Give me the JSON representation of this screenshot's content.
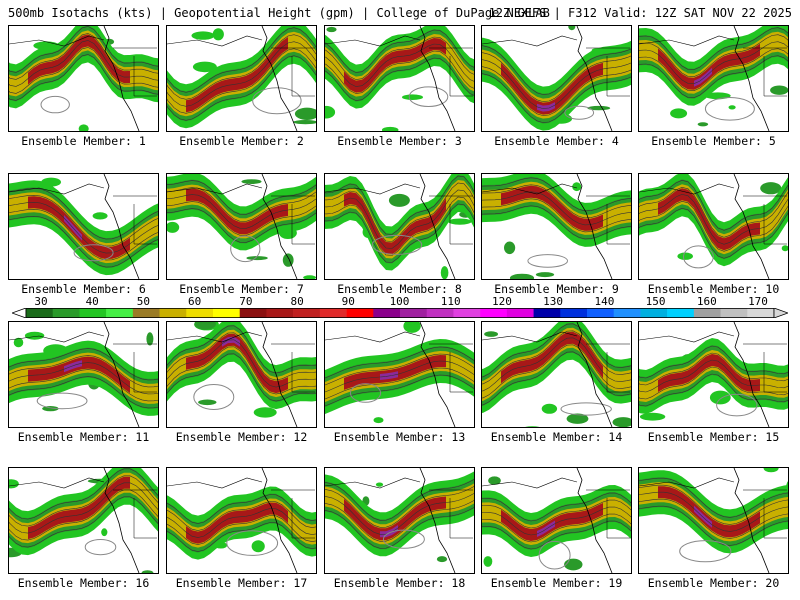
{
  "header": {
    "left_text": "500mb Isotachs (kts) | Geopotential Height (gpm) | College of DuPage NEXLAB",
    "right_text": "12Z GEFS | F312 Valid: 12Z SAT NOV 22 2025"
  },
  "legend": {
    "tick_labels": [
      "30",
      "40",
      "50",
      "60",
      "70",
      "80",
      "90",
      "100",
      "110",
      "120",
      "130",
      "140",
      "150",
      "160",
      "170"
    ],
    "colors": [
      "#1a6b1a",
      "#2a9a2a",
      "#22c522",
      "#44ee44",
      "#9a7b25",
      "#c9b000",
      "#eedd00",
      "#ffff00",
      "#8b1010",
      "#a81818",
      "#c02020",
      "#e02a2a",
      "#ff0000",
      "#8b008b",
      "#a020a0",
      "#c030c0",
      "#e040e0",
      "#ff00ff",
      "#e000e0",
      "#0000aa",
      "#0030dd",
      "#1060ff",
      "#2090ff",
      "#00b0e0",
      "#00d0ff",
      "#a0a0a0",
      "#c0c0c0",
      "#d8d8d8"
    ]
  },
  "panels": [
    {
      "label": "Ensemble Member: 1"
    },
    {
      "label": "Ensemble Member: 2"
    },
    {
      "label": "Ensemble Member: 3"
    },
    {
      "label": "Ensemble Member: 4"
    },
    {
      "label": "Ensemble Member: 5"
    },
    {
      "label": "Ensemble Member: 6"
    },
    {
      "label": "Ensemble Member: 7"
    },
    {
      "label": "Ensemble Member: 8"
    },
    {
      "label": "Ensemble Member: 9"
    },
    {
      "label": "Ensemble Member: 10"
    },
    {
      "label": "Ensemble Member: 11"
    },
    {
      "label": "Ensemble Member: 12"
    },
    {
      "label": "Ensemble Member: 13"
    },
    {
      "label": "Ensemble Member: 14"
    },
    {
      "label": "Ensemble Member: 15"
    },
    {
      "label": "Ensemble Member: 16"
    },
    {
      "label": "Ensemble Member: 17"
    },
    {
      "label": "Ensemble Member: 18"
    },
    {
      "label": "Ensemble Member: 19"
    },
    {
      "label": "Ensemble Member: 20"
    }
  ]
}
